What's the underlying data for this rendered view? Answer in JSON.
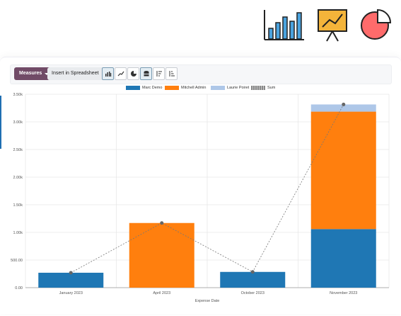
{
  "toolbar": {
    "measures_label": "Measures",
    "insert_label": "Insert in Spreadsheet"
  },
  "icons": {
    "top_row": [
      "bar-chart-icon",
      "presentation-chart-icon",
      "pie-chart-icon"
    ],
    "toolbar": [
      "bar-chart-icon",
      "line-chart-icon",
      "pie-chart-icon",
      "stacked-icon",
      "sort-descending-icon",
      "sort-ascending-icon"
    ]
  },
  "colors": {
    "marc": "#1f77b4",
    "mitchell": "#ff7f0e",
    "laurie": "#aec7e8",
    "sum": "#777777",
    "measures_button": "#714b67"
  },
  "chart_data": {
    "type": "bar",
    "stacked": true,
    "xlabel": "Expense Date",
    "categories": [
      "January 2023",
      "April 2023",
      "October 2023",
      "November 2023"
    ],
    "ylim": [
      0,
      3500
    ],
    "yticks": [
      0,
      500,
      1000,
      1500,
      2000,
      2500,
      3000,
      3500
    ],
    "ytick_labels": [
      "0.00",
      "500.00",
      "1.00k",
      "1.50k",
      "2.00k",
      "2.50k",
      "3.00k",
      "3.50k"
    ],
    "series": [
      {
        "name": "Marc Demo",
        "values": [
          270,
          0,
          285,
          1060
        ]
      },
      {
        "name": "Mitchell Admin",
        "values": [
          0,
          1170,
          0,
          2125
        ]
      },
      {
        "name": "Laurie Poiret",
        "values": [
          0,
          0,
          0,
          130
        ]
      }
    ],
    "sum_series": {
      "name": "Sum",
      "values": [
        270,
        1170,
        285,
        3315
      ]
    },
    "legend_position": "top-center",
    "grid": true
  }
}
